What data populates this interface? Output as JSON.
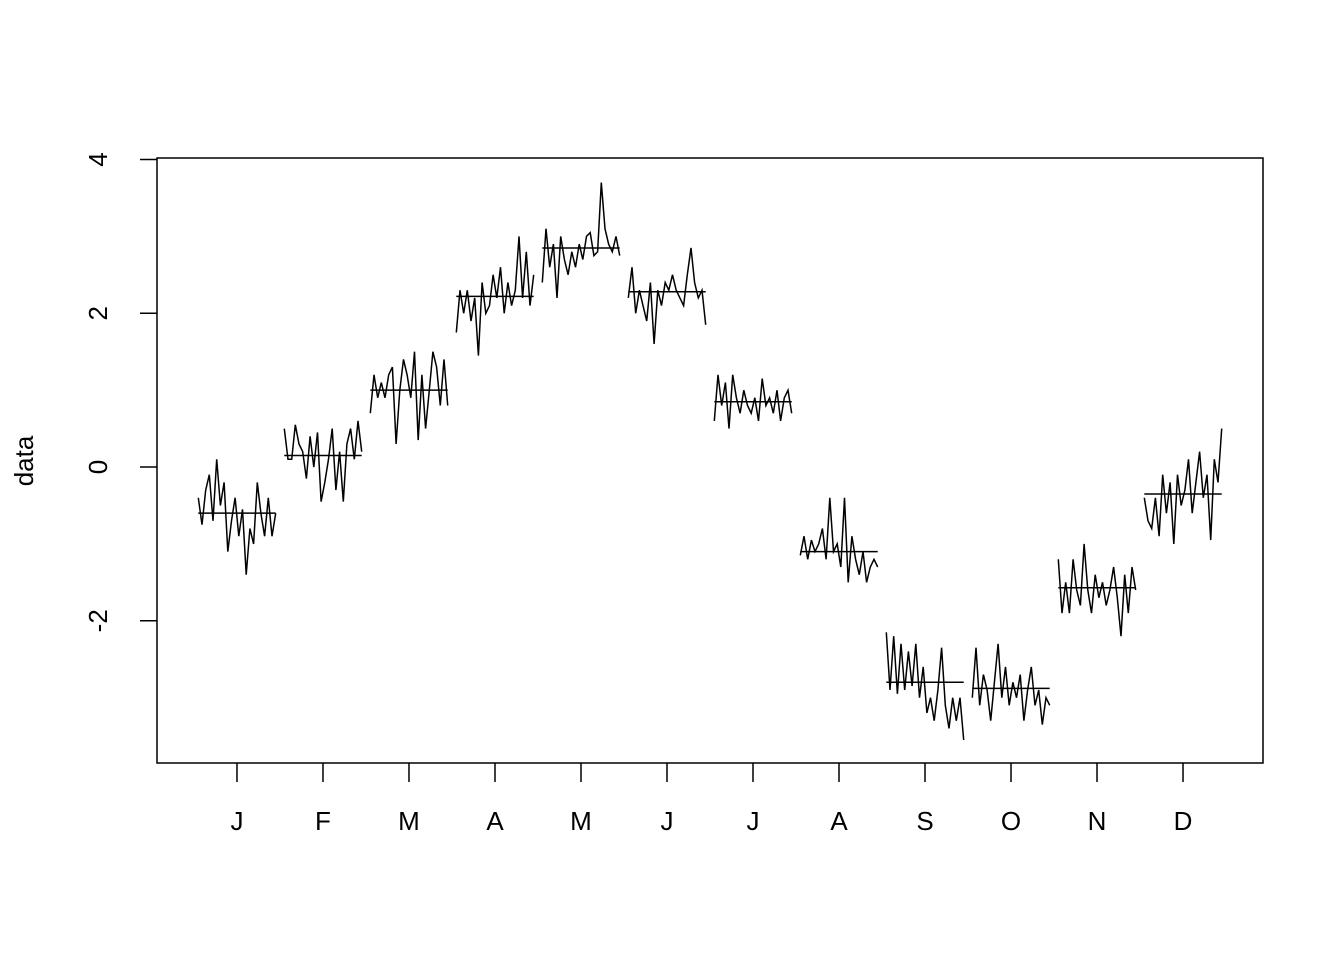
{
  "chart_data": {
    "type": "monthplot",
    "ylabel": "data",
    "xlim": [
      0.07,
      12.93
    ],
    "ylim": [
      -3.85,
      4.02
    ],
    "yticks": [
      -2,
      0,
      2,
      4
    ],
    "xticks": [
      {
        "value": 1,
        "label": "J"
      },
      {
        "value": 2,
        "label": "F"
      },
      {
        "value": 3,
        "label": "M"
      },
      {
        "value": 4,
        "label": "A"
      },
      {
        "value": 5,
        "label": "M"
      },
      {
        "value": 6,
        "label": "J"
      },
      {
        "value": 7,
        "label": "J"
      },
      {
        "value": 8,
        "label": "A"
      },
      {
        "value": 9,
        "label": "S"
      },
      {
        "value": 10,
        "label": "O"
      },
      {
        "value": 11,
        "label": "N"
      },
      {
        "value": 12,
        "label": "D"
      }
    ],
    "color": "#000000",
    "series": [
      {
        "mean": -0.6,
        "values": [
          -0.4,
          -0.75,
          -0.3,
          -0.1,
          -0.7,
          0.1,
          -0.5,
          -0.2,
          -1.1,
          -0.7,
          -0.4,
          -0.9,
          -0.55,
          -1.4,
          -0.8,
          -1.0,
          -0.2,
          -0.6,
          -0.9,
          -0.4,
          -0.9,
          -0.6
        ]
      },
      {
        "mean": 0.15,
        "values": [
          0.5,
          0.1,
          0.1,
          0.55,
          0.3,
          0.2,
          -0.15,
          0.4,
          0.0,
          0.45,
          -0.45,
          -0.2,
          0.1,
          0.5,
          -0.3,
          0.2,
          -0.45,
          0.3,
          0.5,
          0.1,
          0.6,
          0.2
        ]
      },
      {
        "mean": 1.0,
        "values": [
          0.7,
          1.2,
          0.9,
          1.1,
          0.9,
          1.2,
          1.3,
          0.3,
          1.0,
          1.4,
          1.2,
          0.9,
          1.5,
          0.35,
          1.2,
          0.5,
          1.0,
          1.5,
          1.3,
          0.8,
          1.4,
          0.8
        ]
      },
      {
        "mean": 2.22,
        "values": [
          1.75,
          2.3,
          2.0,
          2.3,
          1.9,
          2.2,
          1.45,
          2.4,
          2.0,
          2.1,
          2.5,
          2.2,
          2.6,
          2.0,
          2.4,
          2.1,
          2.3,
          3.0,
          2.2,
          2.8,
          2.1,
          2.5
        ]
      },
      {
        "mean": 2.85,
        "values": [
          2.4,
          3.1,
          2.6,
          2.9,
          2.2,
          3.0,
          2.7,
          2.5,
          2.8,
          2.6,
          2.9,
          2.7,
          3.0,
          3.05,
          2.75,
          2.8,
          3.7,
          3.1,
          2.9,
          2.8,
          3.0,
          2.75
        ]
      },
      {
        "mean": 2.28,
        "values": [
          2.2,
          2.6,
          2.0,
          2.3,
          2.1,
          1.9,
          2.4,
          1.6,
          2.3,
          2.1,
          2.4,
          2.3,
          2.5,
          2.3,
          2.2,
          2.1,
          2.5,
          2.85,
          2.4,
          2.2,
          2.3,
          1.85
        ]
      },
      {
        "mean": 0.85,
        "values": [
          0.6,
          1.2,
          0.8,
          1.1,
          0.5,
          1.2,
          0.9,
          0.7,
          1.0,
          0.8,
          0.7,
          0.9,
          0.6,
          1.15,
          0.8,
          0.9,
          0.7,
          1.0,
          0.6,
          0.9,
          1.0,
          0.7
        ]
      },
      {
        "mean": -1.1,
        "values": [
          -1.15,
          -0.9,
          -1.2,
          -0.95,
          -1.1,
          -1.0,
          -0.8,
          -1.2,
          -0.4,
          -1.1,
          -1.0,
          -1.3,
          -0.4,
          -1.5,
          -0.9,
          -1.2,
          -1.4,
          -1.1,
          -1.5,
          -1.3,
          -1.2,
          -1.3
        ]
      },
      {
        "mean": -2.8,
        "values": [
          -2.15,
          -2.9,
          -2.2,
          -2.95,
          -2.3,
          -2.9,
          -2.4,
          -2.85,
          -2.3,
          -3.0,
          -2.6,
          -3.2,
          -3.0,
          -3.3,
          -2.9,
          -2.35,
          -3.1,
          -3.4,
          -3.0,
          -3.3,
          -3.0,
          -3.55
        ]
      },
      {
        "mean": -2.88,
        "values": [
          -3.0,
          -2.35,
          -3.1,
          -2.7,
          -2.9,
          -3.3,
          -2.8,
          -2.3,
          -3.0,
          -2.6,
          -3.1,
          -2.8,
          -3.0,
          -2.7,
          -3.3,
          -2.9,
          -2.6,
          -3.1,
          -2.9,
          -3.35,
          -3.0,
          -3.1
        ]
      },
      {
        "mean": -1.57,
        "values": [
          -1.2,
          -1.9,
          -1.5,
          -1.9,
          -1.2,
          -1.6,
          -1.8,
          -1.0,
          -1.6,
          -1.9,
          -1.4,
          -1.7,
          -1.5,
          -1.8,
          -1.6,
          -1.3,
          -1.7,
          -2.2,
          -1.4,
          -1.9,
          -1.3,
          -1.6
        ]
      },
      {
        "mean": -0.35,
        "values": [
          -0.4,
          -0.7,
          -0.8,
          -0.4,
          -0.9,
          -0.1,
          -0.6,
          -0.2,
          -1.0,
          -0.1,
          -0.5,
          -0.3,
          0.1,
          -0.6,
          -0.2,
          0.2,
          -0.4,
          -0.1,
          -0.95,
          0.1,
          -0.2,
          0.5
        ]
      }
    ]
  }
}
